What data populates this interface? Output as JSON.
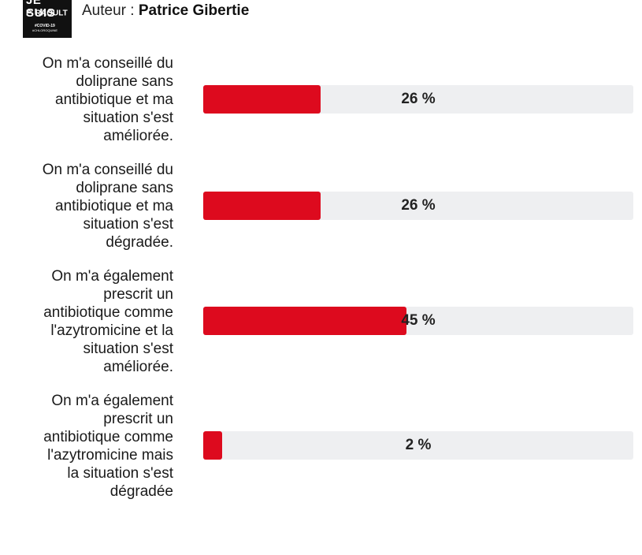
{
  "header": {
    "logo": {
      "line1": "JE SUIS",
      "line2": "Pr RAOULT",
      "line3": "#COVID-19",
      "line4": "#CHLOROQUINE"
    },
    "author_prefix": "Auteur : ",
    "author_name": "Patrice Gibertie"
  },
  "colors": {
    "bar_fill": "#dd0a1e",
    "bar_track": "#eeeff1"
  },
  "chart_data": {
    "type": "bar",
    "orientation": "horizontal",
    "categories": [
      "On m'a conseillé du doliprane sans antibiotique et ma situation s'est améliorée.",
      "On m'a conseillé du doliprane sans antibiotique et ma situation s'est dégradée.",
      "On m'a également prescrit un antibiotique comme l'azytromicine et la situation s'est améliorée.",
      "On m'a également prescrit un antibiotique comme l'azytromicine mais la situation s'est dégradée"
    ],
    "values": [
      26,
      26,
      45,
      2
    ],
    "value_labels": [
      "26 %",
      "26 %",
      "45 %",
      "2 %"
    ],
    "unit": "%",
    "xlim": [
      0,
      100
    ],
    "grid": false,
    "legend": "none"
  }
}
